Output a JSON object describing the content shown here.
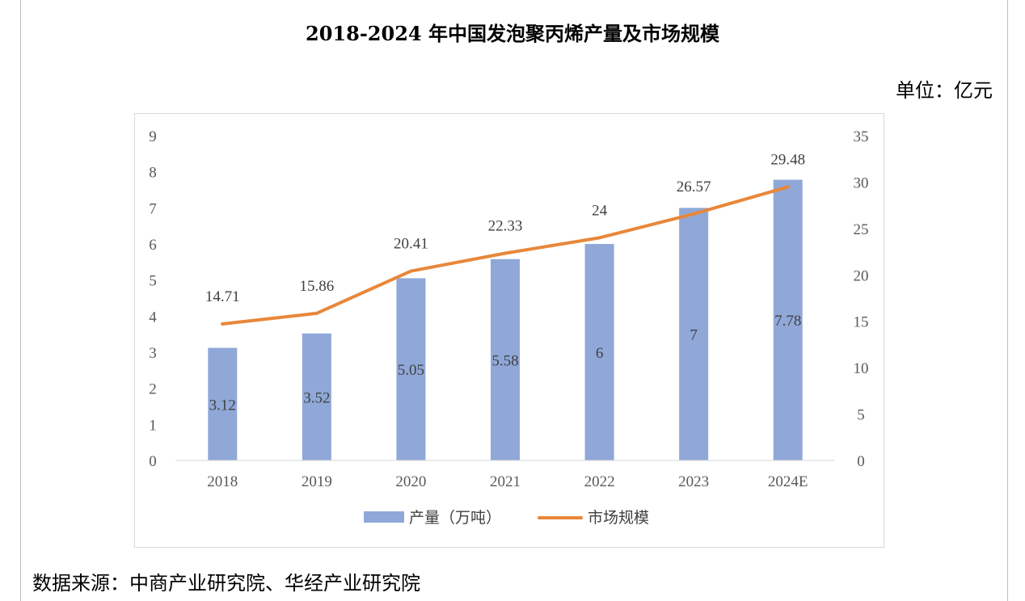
{
  "title": "2018-2024 年中国发泡聚丙烯产量及市场规模",
  "unit_label": "单位：亿元",
  "source": "数据来源：中商产业研究院、华经产业研究院",
  "colors": {
    "bar": "#8fa8d8",
    "line": "#e8873a",
    "grid": "#d9d9d9"
  },
  "chart_data": {
    "type": "bar",
    "categories": [
      "2018",
      "2019",
      "2020",
      "2021",
      "2022",
      "2023",
      "2024E"
    ],
    "series": [
      {
        "name": "产量（万吨）",
        "type": "bar",
        "axis": "left",
        "values": [
          3.12,
          3.52,
          5.05,
          5.58,
          6,
          7,
          7.78
        ],
        "labels": [
          "3.12",
          "3.52",
          "5.05",
          "5.58",
          "6",
          "7",
          "7.78"
        ]
      },
      {
        "name": "市场规模",
        "type": "line",
        "axis": "right",
        "values": [
          14.71,
          15.86,
          20.41,
          22.33,
          24,
          26.57,
          29.48
        ],
        "labels": [
          "14.71",
          "15.86",
          "20.41",
          "22.33",
          "24",
          "26.57",
          "29.48"
        ]
      }
    ],
    "y_left": {
      "ylim": [
        0,
        9
      ],
      "ticks": [
        "0",
        "1",
        "2",
        "3",
        "4",
        "5",
        "6",
        "7",
        "8",
        "9"
      ]
    },
    "y_right": {
      "ylim": [
        0,
        35
      ],
      "ticks": [
        "0",
        "5",
        "10",
        "15",
        "20",
        "25",
        "30",
        "35"
      ]
    },
    "legend": "bottom-center",
    "grid": false
  }
}
